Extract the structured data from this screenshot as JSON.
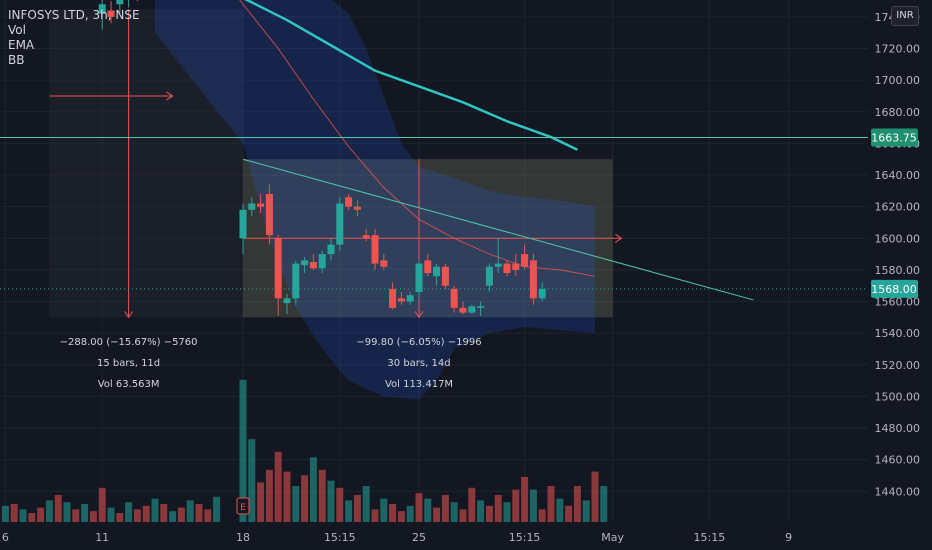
{
  "legend": {
    "symbol": "INFOSYS LTD, 3h, NSE",
    "indicators": [
      "Vol",
      "EMA",
      "BB"
    ]
  },
  "currency_label": "INR",
  "colors": {
    "background": "#131722",
    "up": "#26a69a",
    "down": "#ef5350",
    "ema": "#2fc6bf",
    "bb_fill": "#2962ff",
    "trend": "#4cc9a7",
    "range_box": "#8a8f6f",
    "axis_text": "#b2b5be"
  },
  "chart_data": {
    "type": "candlestick",
    "y_axis": {
      "range": [
        1425,
        1745
      ],
      "ticks": [
        1440,
        1460,
        1480,
        1500,
        1520,
        1540,
        1560,
        1580,
        1600,
        1620,
        1640,
        1660,
        1680,
        1700,
        1720,
        1740
      ]
    },
    "x_axis": {
      "labels": [
        {
          "text": "6",
          "bar": -27
        },
        {
          "text": "11",
          "bar": -16
        },
        {
          "text": "18",
          "bar": 0
        },
        {
          "text": "15:15",
          "bar": 11
        },
        {
          "text": "25",
          "bar": 20
        },
        {
          "text": "15:15",
          "bar": 32
        },
        {
          "text": "May",
          "bar": 42
        },
        {
          "text": "15:15",
          "bar": 53
        },
        {
          "text": "9",
          "bar": 62
        }
      ]
    },
    "price_labels": [
      {
        "value": 1663.75,
        "text": "1663.75",
        "color": "#1f8f70"
      },
      {
        "value": 1568.0,
        "text": "1568.00",
        "color": "#26a69a"
      }
    ],
    "candles": [
      {
        "o": 1742,
        "h": 1752,
        "l": 1732,
        "c": 1748
      },
      {
        "o": 1744,
        "h": 1750,
        "l": 1736,
        "c": 1740
      },
      {
        "o": 1748,
        "h": 1755,
        "l": 1742,
        "c": 1751
      },
      {
        "o": 1752,
        "h": 1760,
        "l": 1746,
        "c": 1756
      },
      {
        "o": 1756,
        "h": 1762,
        "l": 1750,
        "c": 1752
      },
      {
        "o": 1600,
        "h": 1622,
        "l": 1590,
        "c": 1618
      },
      {
        "o": 1618,
        "h": 1626,
        "l": 1614,
        "c": 1622
      },
      {
        "o": 1622,
        "h": 1628,
        "l": 1616,
        "c": 1620
      },
      {
        "o": 1628,
        "h": 1634,
        "l": 1596,
        "c": 1602
      },
      {
        "o": 1600,
        "h": 1602,
        "l": 1551,
        "c": 1562
      },
      {
        "o": 1559,
        "h": 1565,
        "l": 1552,
        "c": 1562
      },
      {
        "o": 1562,
        "h": 1586,
        "l": 1558,
        "c": 1584
      },
      {
        "o": 1583,
        "h": 1588,
        "l": 1578,
        "c": 1586
      },
      {
        "o": 1585,
        "h": 1590,
        "l": 1580,
        "c": 1581
      },
      {
        "o": 1581,
        "h": 1592,
        "l": 1578,
        "c": 1590
      },
      {
        "o": 1590,
        "h": 1600,
        "l": 1586,
        "c": 1596
      },
      {
        "o": 1596,
        "h": 1626,
        "l": 1592,
        "c": 1622
      },
      {
        "o": 1626,
        "h": 1628,
        "l": 1618,
        "c": 1620
      },
      {
        "o": 1620,
        "h": 1624,
        "l": 1614,
        "c": 1618
      },
      {
        "o": 1602,
        "h": 1606,
        "l": 1598,
        "c": 1600
      },
      {
        "o": 1602,
        "h": 1606,
        "l": 1580,
        "c": 1584
      },
      {
        "o": 1586,
        "h": 1590,
        "l": 1580,
        "c": 1582
      },
      {
        "o": 1568,
        "h": 1572,
        "l": 1555,
        "c": 1556
      },
      {
        "o": 1562,
        "h": 1566,
        "l": 1558,
        "c": 1560
      },
      {
        "o": 1560,
        "h": 1566,
        "l": 1558,
        "c": 1564
      },
      {
        "o": 1566,
        "h": 1586,
        "l": 1562,
        "c": 1584
      },
      {
        "o": 1586,
        "h": 1590,
        "l": 1576,
        "c": 1578
      },
      {
        "o": 1576,
        "h": 1584,
        "l": 1570,
        "c": 1582
      },
      {
        "o": 1582,
        "h": 1584,
        "l": 1568,
        "c": 1570
      },
      {
        "o": 1568,
        "h": 1570,
        "l": 1553,
        "c": 1556
      },
      {
        "o": 1556,
        "h": 1560,
        "l": 1552,
        "c": 1553
      },
      {
        "o": 1553,
        "h": 1558,
        "l": 1552,
        "c": 1557
      },
      {
        "o": 1556,
        "h": 1560,
        "l": 1551,
        "c": 1557
      },
      {
        "o": 1570,
        "h": 1584,
        "l": 1566,
        "c": 1582
      },
      {
        "o": 1582,
        "h": 1600,
        "l": 1578,
        "c": 1584
      },
      {
        "o": 1584,
        "h": 1586,
        "l": 1576,
        "c": 1578
      },
      {
        "o": 1584,
        "h": 1590,
        "l": 1576,
        "c": 1580
      },
      {
        "o": 1590,
        "h": 1596,
        "l": 1580,
        "c": 1582
      },
      {
        "o": 1586,
        "h": 1590,
        "l": 1558,
        "c": 1562
      },
      {
        "o": 1562,
        "h": 1572,
        "l": 1560,
        "c": 1568
      }
    ],
    "volume_bars": [
      1,
      2,
      1,
      1,
      1,
      2,
      1,
      1,
      1,
      2,
      1,
      1,
      1,
      2,
      1,
      1,
      3,
      1,
      2,
      1,
      2,
      1,
      1,
      2,
      1,
      2,
      1,
      1,
      2,
      2,
      2,
      1,
      1,
      2,
      2,
      2,
      1,
      1,
      2,
      1
    ],
    "volume_series": [
      {
        "bar": -28,
        "h": 12,
        "up": false
      },
      {
        "bar": -27,
        "h": 18,
        "up": true
      },
      {
        "bar": -26,
        "h": 20,
        "up": false
      },
      {
        "bar": -25,
        "h": 14,
        "up": true
      },
      {
        "bar": -24,
        "h": 10,
        "up": false
      },
      {
        "bar": -23,
        "h": 16,
        "up": false
      },
      {
        "bar": -22,
        "h": 24,
        "up": true
      },
      {
        "bar": -21,
        "h": 30,
        "up": false
      },
      {
        "bar": -20,
        "h": 22,
        "up": true
      },
      {
        "bar": -19,
        "h": 14,
        "up": false
      },
      {
        "bar": -18,
        "h": 20,
        "up": true
      },
      {
        "bar": -17,
        "h": 12,
        "up": false
      },
      {
        "bar": -16,
        "h": 38,
        "up": false
      },
      {
        "bar": -15,
        "h": 16,
        "up": true
      },
      {
        "bar": -14,
        "h": 10,
        "up": false
      },
      {
        "bar": -13,
        "h": 22,
        "up": true
      },
      {
        "bar": -12,
        "h": 14,
        "up": false
      },
      {
        "bar": -11,
        "h": 18,
        "up": false
      },
      {
        "bar": -10,
        "h": 26,
        "up": true
      },
      {
        "bar": -9,
        "h": 20,
        "up": false
      },
      {
        "bar": -8,
        "h": 12,
        "up": true
      },
      {
        "bar": -7,
        "h": 16,
        "up": false
      },
      {
        "bar": -6,
        "h": 24,
        "up": true
      },
      {
        "bar": -5,
        "h": 20,
        "up": false
      },
      {
        "bar": -4,
        "h": 14,
        "up": false
      },
      {
        "bar": -3,
        "h": 28,
        "up": true
      },
      {
        "bar": 0,
        "h": 158,
        "up": true
      },
      {
        "bar": 1,
        "h": 92,
        "up": true
      },
      {
        "bar": 2,
        "h": 44,
        "up": false
      },
      {
        "bar": 3,
        "h": 58,
        "up": false
      },
      {
        "bar": 4,
        "h": 78,
        "up": false
      },
      {
        "bar": 5,
        "h": 56,
        "up": false
      },
      {
        "bar": 6,
        "h": 40,
        "up": true
      },
      {
        "bar": 7,
        "h": 52,
        "up": false
      },
      {
        "bar": 8,
        "h": 72,
        "up": true
      },
      {
        "bar": 9,
        "h": 58,
        "up": false
      },
      {
        "bar": 10,
        "h": 46,
        "up": true
      },
      {
        "bar": 11,
        "h": 38,
        "up": false
      },
      {
        "bar": 12,
        "h": 24,
        "up": true
      },
      {
        "bar": 13,
        "h": 30,
        "up": false
      },
      {
        "bar": 14,
        "h": 40,
        "up": true
      },
      {
        "bar": 15,
        "h": 14,
        "up": false
      },
      {
        "bar": 16,
        "h": 26,
        "up": true
      },
      {
        "bar": 17,
        "h": 20,
        "up": false
      },
      {
        "bar": 18,
        "h": 12,
        "up": false
      },
      {
        "bar": 19,
        "h": 18,
        "up": true
      },
      {
        "bar": 20,
        "h": 32,
        "up": false
      },
      {
        "bar": 21,
        "h": 26,
        "up": true
      },
      {
        "bar": 22,
        "h": 16,
        "up": false
      },
      {
        "bar": 23,
        "h": 30,
        "up": false
      },
      {
        "bar": 24,
        "h": 22,
        "up": true
      },
      {
        "bar": 25,
        "h": 14,
        "up": false
      },
      {
        "bar": 26,
        "h": 38,
        "up": false
      },
      {
        "bar": 27,
        "h": 24,
        "up": true
      },
      {
        "bar": 28,
        "h": 18,
        "up": false
      },
      {
        "bar": 29,
        "h": 30,
        "up": false
      },
      {
        "bar": 30,
        "h": 22,
        "up": true
      },
      {
        "bar": 31,
        "h": 36,
        "up": false
      },
      {
        "bar": 32,
        "h": 50,
        "up": false
      },
      {
        "bar": 33,
        "h": 36,
        "up": true
      },
      {
        "bar": 34,
        "h": 14,
        "up": false
      },
      {
        "bar": 35,
        "h": 40,
        "up": false
      },
      {
        "bar": 36,
        "h": 26,
        "up": true
      },
      {
        "bar": 37,
        "h": 18,
        "up": false
      },
      {
        "bar": 38,
        "h": 40,
        "up": false
      },
      {
        "bar": 39,
        "h": 24,
        "up": true
      },
      {
        "bar": 40,
        "h": 56,
        "up": false
      },
      {
        "bar": 41,
        "h": 40,
        "up": true
      }
    ],
    "ema": [
      {
        "bar": -20,
        "v": 1840
      },
      {
        "bar": -10,
        "v": 1790
      },
      {
        "bar": 0,
        "v": 1752
      },
      {
        "bar": 5,
        "v": 1738
      },
      {
        "bar": 10,
        "v": 1722
      },
      {
        "bar": 15,
        "v": 1706
      },
      {
        "bar": 20,
        "v": 1696
      },
      {
        "bar": 25,
        "v": 1686
      },
      {
        "bar": 30,
        "v": 1674
      },
      {
        "bar": 35,
        "v": 1664
      },
      {
        "bar": 38,
        "v": 1656
      }
    ],
    "bb_basis": [
      {
        "bar": -10,
        "v": 1820
      },
      {
        "bar": 0,
        "v": 1748
      },
      {
        "bar": 4,
        "v": 1720
      },
      {
        "bar": 8,
        "v": 1688
      },
      {
        "bar": 12,
        "v": 1658
      },
      {
        "bar": 16,
        "v": 1632
      },
      {
        "bar": 20,
        "v": 1612
      },
      {
        "bar": 24,
        "v": 1600
      },
      {
        "bar": 28,
        "v": 1590
      },
      {
        "bar": 32,
        "v": 1582
      },
      {
        "bar": 36,
        "v": 1580
      },
      {
        "bar": 40,
        "v": 1576
      }
    ],
    "bb_upper": [
      {
        "bar": -10,
        "v": 1880
      },
      {
        "bar": 0,
        "v": 1790
      },
      {
        "bar": 4,
        "v": 1776
      },
      {
        "bar": 8,
        "v": 1760
      },
      {
        "bar": 12,
        "v": 1742
      },
      {
        "bar": 14,
        "v": 1720
      },
      {
        "bar": 16,
        "v": 1690
      },
      {
        "bar": 18,
        "v": 1660
      },
      {
        "bar": 20,
        "v": 1645
      },
      {
        "bar": 24,
        "v": 1638
      },
      {
        "bar": 28,
        "v": 1630
      },
      {
        "bar": 32,
        "v": 1626
      },
      {
        "bar": 36,
        "v": 1624
      },
      {
        "bar": 40,
        "v": 1620
      }
    ],
    "bb_lower": [
      {
        "bar": -10,
        "v": 1730
      },
      {
        "bar": 0,
        "v": 1660
      },
      {
        "bar": 3,
        "v": 1600
      },
      {
        "bar": 6,
        "v": 1556
      },
      {
        "bar": 9,
        "v": 1530
      },
      {
        "bar": 12,
        "v": 1510
      },
      {
        "bar": 16,
        "v": 1500
      },
      {
        "bar": 20,
        "v": 1498
      },
      {
        "bar": 22,
        "v": 1510
      },
      {
        "bar": 24,
        "v": 1530
      },
      {
        "bar": 28,
        "v": 1540
      },
      {
        "bar": 32,
        "v": 1544
      },
      {
        "bar": 36,
        "v": 1542
      },
      {
        "bar": 40,
        "v": 1540
      }
    ],
    "trendline": {
      "bar0": 0,
      "v0": 1650,
      "bar1": 58,
      "v1": 1561
    },
    "horizontal_line": 1663.75,
    "measure_box_left": {
      "bar0": -22,
      "bar1": 0,
      "v_top": 1745,
      "v_bottom": 1550,
      "mid_bar": -13,
      "arrow_y": 1690,
      "arrow_from": -22,
      "arrow_to": -8
    },
    "measure_box_right": {
      "bar0": 0,
      "bar1": 42,
      "v_top": 1650,
      "v_bottom": 1550,
      "mid_bar": 20,
      "arrow_y": 1600,
      "arrow_from": 0,
      "arrow_to": 43
    },
    "measure_stats": [
      {
        "bar": -13,
        "lines": [
          "−288.00 (−15.67%) −5760",
          "15 bars, 11d",
          "Vol 63.563M"
        ]
      },
      {
        "bar": 20,
        "lines": [
          "−99.80 (−6.05%) −1996",
          "30 bars, 14d",
          "Vol 113.417M"
        ]
      }
    ],
    "earnings_marker": {
      "bar": 0,
      "text": "E"
    }
  }
}
